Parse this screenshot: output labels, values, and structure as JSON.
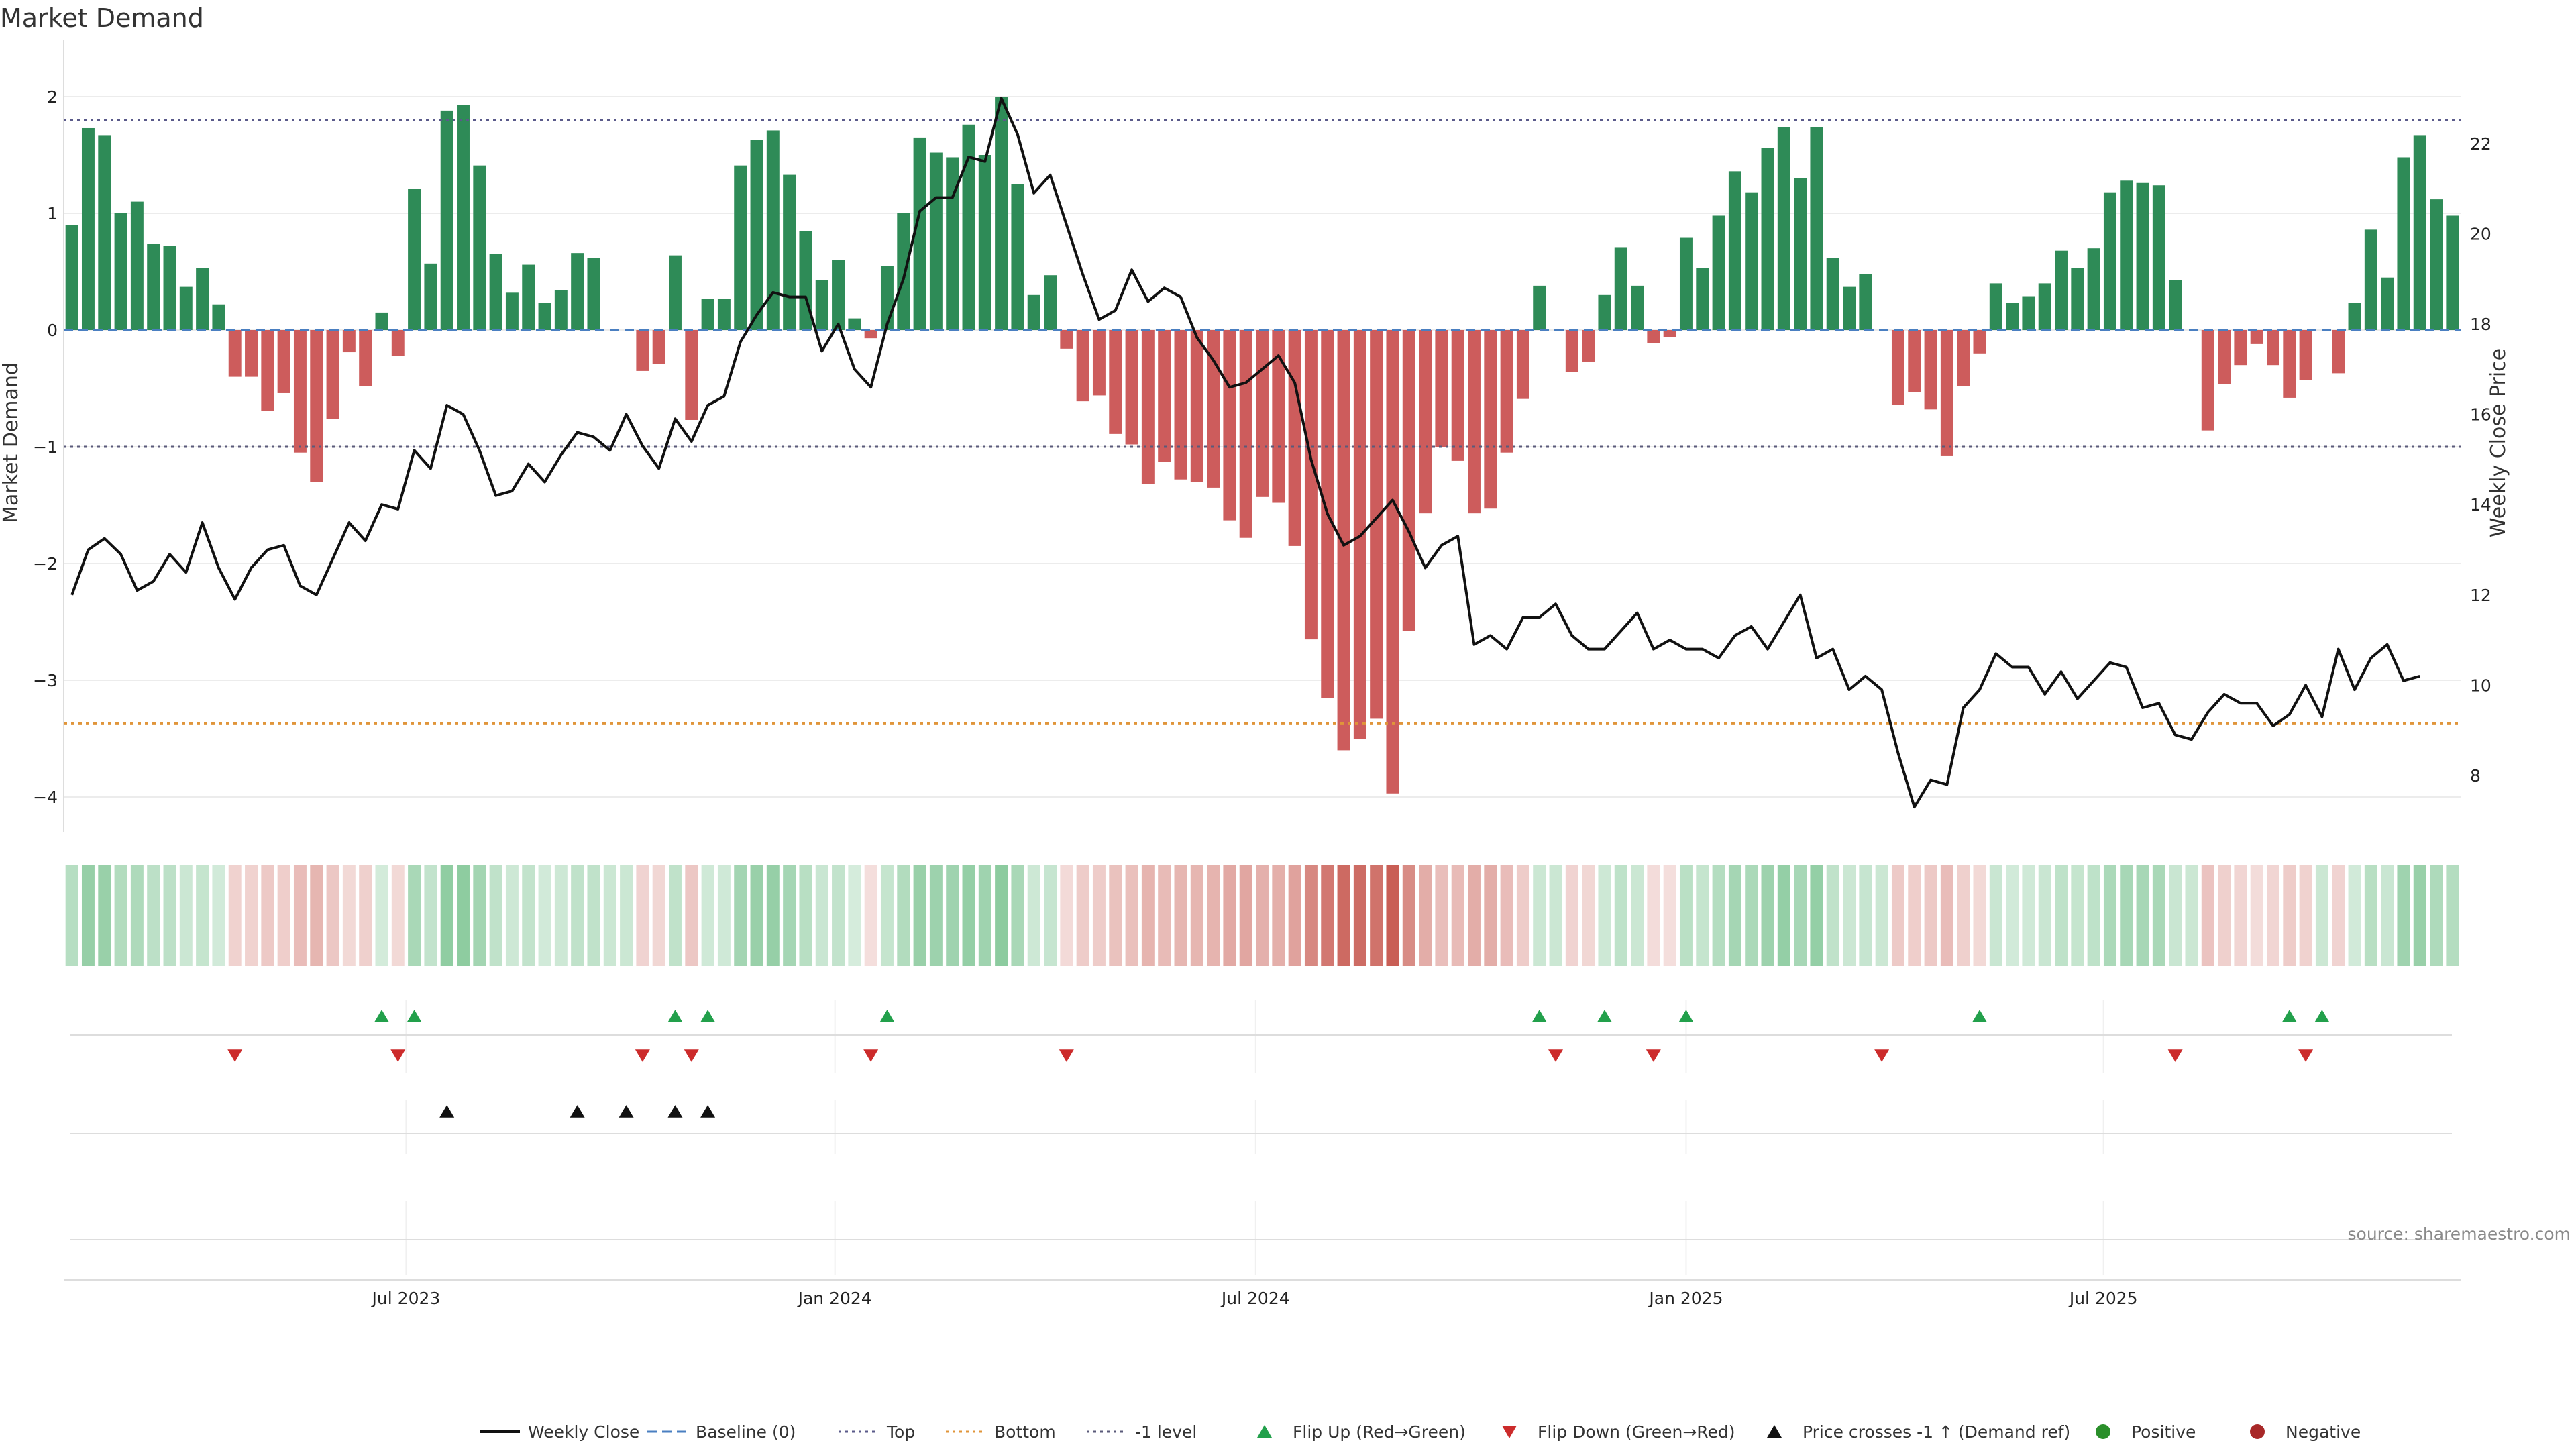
{
  "source": "source: sharemaestro.com",
  "colors": {
    "positive": "#2e8b57",
    "negative": "#cd5c5c",
    "price": "#111111",
    "baseline": "#4a7fc1",
    "top": "#5a5a8a",
    "bottom": "#e0953a",
    "minus_one": "#5a5a7a",
    "flip_up": "#22a04b",
    "flip_down": "#cc2b2b",
    "cross": "#111111",
    "pos_dot": "#2a8f2a",
    "neg_dot": "#a82828"
  },
  "chart_data": {
    "type": "bar",
    "title": "Market Demand",
    "ylabel": "Market Demand",
    "y2label": "Weekly Close Price",
    "ylim": [
      -4.3,
      2.1
    ],
    "y_ticks": [
      {
        "v": 2,
        "label": "2"
      },
      {
        "v": 1,
        "label": "1"
      },
      {
        "v": 0,
        "label": "0"
      },
      {
        "v": -1,
        "label": "−1"
      },
      {
        "v": -2,
        "label": "−2"
      },
      {
        "v": -3,
        "label": "−3"
      },
      {
        "v": -4,
        "label": "−4"
      }
    ],
    "y2lim": [
      7.0,
      23.6
    ],
    "y2_ticks": [
      {
        "v": 8,
        "label": "8"
      },
      {
        "v": 10,
        "label": "10"
      },
      {
        "v": 12,
        "label": "12"
      },
      {
        "v": 14,
        "label": "14"
      },
      {
        "v": 16,
        "label": "16"
      },
      {
        "v": 18,
        "label": "18"
      },
      {
        "v": 20,
        "label": "20"
      },
      {
        "v": 22,
        "label": "22"
      }
    ],
    "x_ticks": [
      {
        "index": 20.5,
        "label": "Jul 2023"
      },
      {
        "index": 46.8,
        "label": "Jan 2024"
      },
      {
        "index": 72.6,
        "label": "Jul 2024"
      },
      {
        "index": 99.0,
        "label": "Jan 2025"
      },
      {
        "index": 124.6,
        "label": "Jul 2025"
      }
    ],
    "reference_lines": {
      "top": 1.8,
      "bottom": -3.37,
      "minus_one": -1,
      "baseline": 0
    },
    "demand": [
      0.9,
      1.73,
      1.67,
      1.0,
      1.1,
      0.74,
      0.72,
      0.37,
      0.53,
      0.22,
      -0.4,
      -0.4,
      -0.69,
      -0.54,
      -1.05,
      -1.3,
      -0.76,
      -0.19,
      -0.48,
      0.15,
      -0.22,
      1.21,
      0.57,
      1.88,
      1.93,
      1.41,
      0.65,
      0.32,
      0.56,
      0.23,
      0.34,
      0.66,
      0.62,
      0.0,
      0.0,
      -0.35,
      -0.29,
      0.64,
      -0.77,
      0.27,
      0.27,
      1.41,
      1.63,
      1.71,
      1.33,
      0.85,
      0.43,
      0.6,
      0.1,
      -0.07,
      0.55,
      1.0,
      1.65,
      1.52,
      1.48,
      1.76,
      1.5,
      2.0,
      1.25,
      0.3,
      0.47,
      -0.16,
      -0.61,
      -0.56,
      -0.89,
      -0.98,
      -1.32,
      -1.13,
      -1.28,
      -1.3,
      -1.35,
      -1.63,
      -1.78,
      -1.43,
      -1.48,
      -1.85,
      -2.65,
      -3.15,
      -3.6,
      -3.5,
      -3.33,
      -3.97,
      -2.58,
      -1.57,
      -1.0,
      -1.12,
      -1.57,
      -1.53,
      -1.05,
      -0.59,
      0.38,
      0.0,
      -0.36,
      -0.27,
      0.3,
      0.71,
      0.38,
      -0.11,
      -0.06,
      0.79,
      0.53,
      0.98,
      1.36,
      1.18,
      1.56,
      1.74,
      1.3,
      1.74,
      0.62,
      0.37,
      0.48,
      0.0,
      -0.64,
      -0.53,
      -0.68,
      -1.08,
      -0.48,
      -0.2,
      0.4,
      0.23,
      0.29,
      0.4,
      0.68,
      0.53,
      0.7,
      1.18,
      1.28,
      1.26,
      1.24,
      0.43,
      0.0,
      -0.86,
      -0.46,
      -0.3,
      -0.12,
      -0.3,
      -0.58,
      -0.43,
      0.0,
      -0.37,
      0.23,
      0.86,
      0.45,
      1.48,
      1.67,
      1.12,
      0.98
    ],
    "price": [
      12.0,
      13.0,
      13.25,
      12.9,
      12.1,
      12.3,
      12.9,
      12.5,
      13.6,
      12.6,
      11.9,
      12.6,
      13.0,
      13.1,
      12.2,
      12.0,
      12.8,
      13.6,
      13.2,
      14.0,
      13.9,
      15.2,
      14.8,
      16.2,
      16.0,
      15.2,
      14.2,
      14.3,
      14.9,
      14.5,
      15.1,
      15.6,
      15.5,
      15.2,
      16.0,
      15.3,
      14.8,
      15.9,
      15.4,
      16.2,
      16.4,
      17.6,
      18.2,
      18.7,
      18.6,
      18.6,
      17.4,
      18.0,
      17.0,
      16.6,
      18.0,
      19.0,
      20.5,
      20.8,
      20.8,
      21.7,
      21.6,
      23.0,
      22.2,
      20.9,
      21.3,
      20.2,
      19.1,
      18.1,
      18.3,
      19.2,
      18.5,
      18.8,
      18.6,
      17.7,
      17.2,
      16.6,
      16.7,
      17.0,
      17.3,
      16.7,
      15.0,
      13.8,
      13.1,
      13.3,
      13.7,
      14.1,
      13.4,
      12.6,
      13.1,
      13.3,
      10.9,
      11.1,
      10.8,
      11.5,
      11.5,
      11.8,
      11.1,
      10.8,
      10.8,
      11.2,
      11.6,
      10.8,
      11.0,
      10.8,
      10.8,
      10.6,
      11.1,
      11.3,
      10.8,
      11.4,
      12.0,
      10.6,
      10.8,
      9.9,
      10.2,
      9.9,
      8.5,
      7.3,
      7.9,
      7.8,
      9.5,
      9.9,
      10.7,
      10.4,
      10.4,
      9.8,
      10.3,
      9.7,
      10.1,
      10.5,
      10.4,
      9.5,
      9.6,
      8.9,
      8.8,
      9.4,
      9.8,
      9.6,
      9.6,
      9.1,
      9.35,
      10.0,
      9.3,
      10.8,
      9.9,
      10.6,
      10.9,
      10.1,
      10.2
    ],
    "heat_strip": [
      {
        "from": 0,
        "to": 9,
        "sign": "pos",
        "alpha": [
          0.55,
          0.62,
          0.6,
          0.5,
          0.5,
          0.42,
          0.42,
          0.35,
          0.38,
          0.3
        ]
      },
      {
        "from": 10,
        "to": 18,
        "sign": "neg",
        "alpha": [
          0.3,
          0.3,
          0.34,
          0.32,
          0.38,
          0.4,
          0.34,
          0.28,
          0.32
        ]
      }
    ],
    "flip_up": [
      19,
      21,
      37,
      39,
      50,
      90,
      94,
      99,
      117,
      136,
      138
    ],
    "flip_down": [
      10,
      20,
      35,
      38,
      49,
      61,
      91,
      97,
      111,
      129,
      137
    ],
    "price_cross": [
      23,
      31,
      34,
      37,
      39
    ],
    "legend": [
      {
        "key": "price",
        "label": "Weekly Close"
      },
      {
        "key": "baseline",
        "label": "Baseline (0)"
      },
      {
        "key": "top",
        "label": "Top"
      },
      {
        "key": "bottom",
        "label": "Bottom"
      },
      {
        "key": "minus_one",
        "label": "-1 level"
      },
      {
        "key": "flip_up",
        "label": "Flip Up (Red→Green)"
      },
      {
        "key": "flip_down",
        "label": "Flip Down (Green→Red)"
      },
      {
        "key": "cross",
        "label": "Price crosses -1 ↑ (Demand ref)"
      },
      {
        "key": "pos_dot",
        "label": "Positive"
      },
      {
        "key": "neg_dot",
        "label": "Negative"
      }
    ]
  }
}
